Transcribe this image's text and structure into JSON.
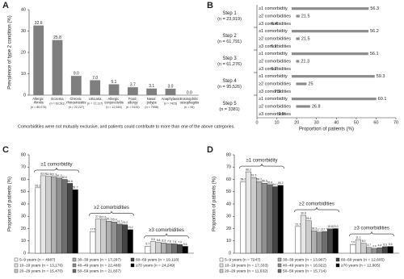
{
  "chart_data": [
    {
      "type": "bar",
      "panel_label": "A",
      "ylabel": "Prevalence of type 2 condition (%)",
      "categories": [
        "Allergic rhinitis",
        "Eczema",
        "Chronic rhinosinusitis",
        "Urticaria",
        "Allergic conjunctivitis",
        "Food allergy",
        "Nasal polyps",
        "Anaphylaxis",
        "Eosinophilic oesophagitis"
      ],
      "category_notes": [
        "(n = 80,074)",
        "(n = 63,511)",
        "(n = 22,227)",
        "(n = 17,117)",
        "(n = 12,516)",
        "(n = 9133)",
        "(n = 7598)",
        "(n = 7423)",
        "(n = 94)"
      ],
      "values": [
        32.6,
        25.8,
        9.0,
        7.0,
        5.1,
        3.7,
        3.1,
        3.0,
        0.0
      ],
      "value_labels": [
        "32.6",
        "25.8",
        "9.0",
        "7.0",
        "5.1",
        "3.7",
        "3.1",
        "3.0",
        "0.0"
      ],
      "color": "#7f7f7f",
      "ylim": [
        0,
        40
      ],
      "yticks": [
        0,
        10,
        20,
        30,
        40
      ],
      "note": "Comorbidities were not mutually exclusive, and patients could contribute to more than one of the above categories."
    },
    {
      "type": "bar",
      "orientation": "horizontal",
      "panel_label": "B",
      "xlabel": "Proportion of patients (%)",
      "categories": [
        "Step 1",
        "Step 2",
        "Step 3",
        "Step 4",
        "Step 5"
      ],
      "category_notes": [
        "(n = 23,919)",
        "(n = 61,791)",
        "(n = 61,276)",
        "(n = 95,526)",
        "(n = 3381)"
      ],
      "series": [
        {
          "name": "≥1 comorbidity",
          "color": "#8c8c8c",
          "values": [
            56.3,
            56.2,
            56.1,
            59.3,
            60.1
          ]
        },
        {
          "name": "≥2 comorbidities",
          "color": "#8c8c8c",
          "values": [
            21.5,
            21.5,
            21.3,
            25,
            26.8
          ]
        },
        {
          "name": "≥3 comorbidities",
          "color": "#8c8c8c",
          "values": [
            6.4,
            6.1,
            6.2,
            7.9,
            9.9
          ]
        }
      ],
      "xlim": [
        0,
        70
      ],
      "xticks": [
        0,
        10,
        20,
        30,
        40,
        50,
        60,
        70
      ]
    },
    {
      "type": "bar",
      "panel_label": "C",
      "ylabel": "Proportion of patients (%)",
      "legend": "bottom",
      "categories": [
        "≥1 comorbidity",
        "≥2 comorbidities",
        "≥3 comorbidities"
      ],
      "series": [
        {
          "name": "5–9 years (n = 4987)",
          "color": "#ffffff",
          "values": [
            53.2,
            17.5,
            5.7
          ],
          "value_labels": [
            "53.2",
            "17.5",
            "5.7"
          ]
        },
        {
          "name": "10–19 years (n = 13,176)",
          "color": "#e6e6e6",
          "values": [
            63.0,
            27.8,
            9.5
          ],
          "value_labels": [
            "63.0",
            "27.8",
            "9.5"
          ]
        },
        {
          "name": "20–29 years (n = 15,470)",
          "color": "#cccccc",
          "values": [
            62.5,
            27.6,
            8.8
          ],
          "value_labels": [
            "62.5",
            "27.6",
            "8.8"
          ]
        },
        {
          "name": "30–39 years (n = 17,297)",
          "color": "#b0b0b0",
          "values": [
            62.3,
            26.1,
            8.3
          ],
          "value_labels": [
            "62.3",
            "26.1",
            "8.3"
          ]
        },
        {
          "name": "40–49 years (n = 22,488)",
          "color": "#909090",
          "values": [
            61.2,
            25.4,
            7.8
          ],
          "value_labels": [
            "61.2",
            "25.4",
            "7.8"
          ]
        },
        {
          "name": "50–59 years (n = 21,837)",
          "color": "#6e6e6e",
          "values": [
            60.0,
            23.7,
            7.6
          ],
          "value_labels": [
            "60.0",
            "23.7",
            "7.6"
          ]
        },
        {
          "name": "60–69 years (n = 19,118)",
          "color": "#444444",
          "values": [
            56.8,
            23.2,
            7.0
          ],
          "value_labels": [
            "56.8",
            "23.2",
            "7.0"
          ]
        },
        {
          "name": "≥70 years (n = 24,249)",
          "color": "#000000",
          "values": [
            51.7,
            19.2,
            5.6
          ],
          "value_labels": [
            "51.7",
            "19.2",
            "5.6"
          ]
        }
      ],
      "ylim": [
        0,
        80
      ],
      "yticks": [
        0,
        10,
        20,
        30,
        40,
        50,
        60,
        70,
        80
      ]
    },
    {
      "type": "bar",
      "panel_label": "D",
      "ylabel": "Proportion of patients (%)",
      "legend": "bottom",
      "categories": [
        "≥1 comorbidity",
        "≥2 comorbidities",
        "≥3 comorbidities"
      ],
      "series": [
        {
          "name": "5–9 years (n = 7247)",
          "color": "#ffffff",
          "values": [
            58.2,
            21.7,
            7.0
          ],
          "value_labels": [
            "58.2",
            "21.7",
            "7.0"
          ]
        },
        {
          "name": "10–19 years (n = 17,333)",
          "color": "#e6e6e6",
          "values": [
            66.2,
            30.8,
            11.1
          ],
          "value_labels": [
            "66.2",
            "30.8",
            "11.1"
          ]
        },
        {
          "name": "20–29 years (n = 11,632)",
          "color": "#cccccc",
          "values": [
            61.5,
            26.4,
            8.0
          ],
          "value_labels": [
            "61.5",
            "26.4",
            "8.0"
          ]
        },
        {
          "name": "30–39 years (n = 13,907)",
          "color": "#b0b0b0",
          "values": [
            58.2,
            18.3,
            4.7
          ],
          "value_labels": [
            "58.2",
            "18.3",
            "4.7"
          ]
        },
        {
          "name": "40–49 years (n = 16,922)",
          "color": "#909090",
          "values": [
            56.9,
            17.2,
            3.9
          ],
          "value_labels": [
            "56.9",
            "17.2",
            "3.9"
          ]
        },
        {
          "name": "50–59 years (n = 15,714)",
          "color": "#6e6e6e",
          "values": [
            55.8,
            17.7,
            4.4
          ],
          "value_labels": [
            "55.8",
            "17.7",
            "4.4"
          ]
        },
        {
          "name": "60–69 years (n = 12,605)",
          "color": "#444444",
          "values": [
            54.1,
            19.8,
            5.3
          ],
          "value_labels": [
            "54.1",
            "19.8",
            "5.3"
          ]
        },
        {
          "name": "≥70 years (n = 12,805)",
          "color": "#000000",
          "values": [
            55.2,
            20.0,
            5.5
          ],
          "value_labels": [
            "55.2",
            "20.0",
            "5.5"
          ]
        }
      ],
      "ylim": [
        0,
        80
      ],
      "yticks": [
        0,
        10,
        20,
        30,
        40,
        50,
        60,
        70,
        80
      ]
    }
  ]
}
